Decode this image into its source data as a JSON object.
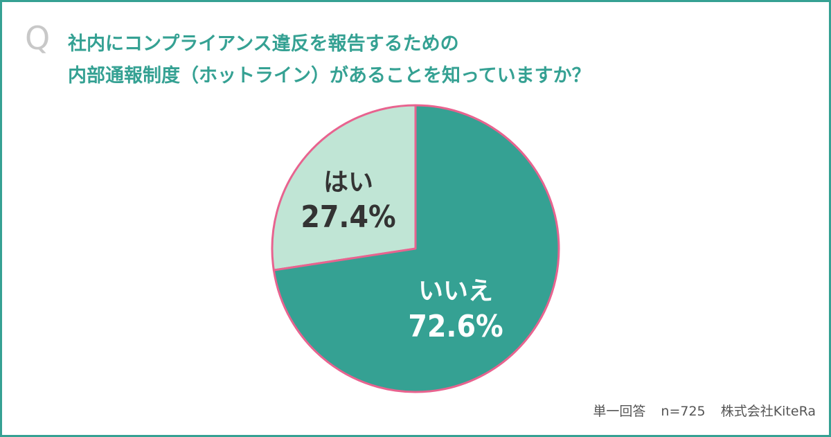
{
  "question": {
    "mark": "Q",
    "line1": "社内にコンプライアンス違反を報告するための",
    "line2": "内部通報制度（ホットライン）があることを知っていますか？"
  },
  "footer": {
    "answer_type": "単一回答",
    "sample_size": "n=725",
    "company": "株式会社KiteRa"
  },
  "colors": {
    "frame": "#35a193",
    "title": "#35a193",
    "yes": "#c0e5d5",
    "no": "#35a193",
    "slice_border": "#e8638f"
  },
  "chart_data": {
    "type": "pie",
    "slices": [
      {
        "label": "はい",
        "value_label": "27.4%",
        "value": 27.4
      },
      {
        "label": "いいえ",
        "value_label": "72.6%",
        "value": 72.6
      }
    ]
  }
}
